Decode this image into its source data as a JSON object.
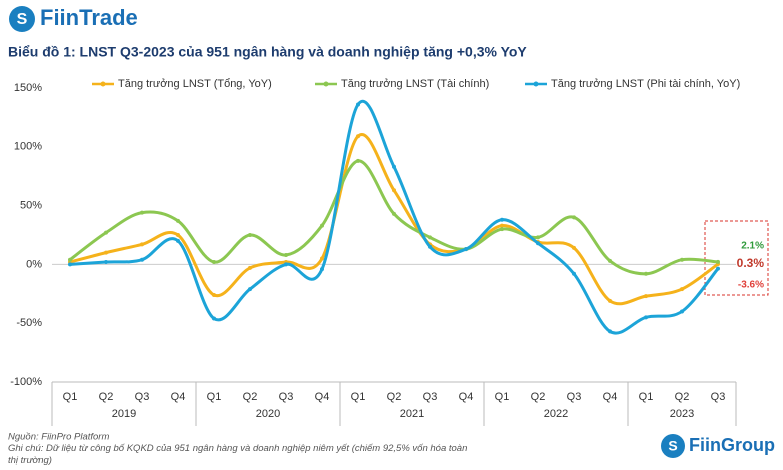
{
  "brand": "FiinTrade",
  "footer_brand": "FiinGroup",
  "source": "Nguồn: FiinPro Platform",
  "note": "Ghi chú: Dữ liệu từ công bố KQKD của 951 ngân hàng và doanh nghiệp niêm yết (chiếm 92,5% vốn hóa toàn thị trường)",
  "chart_data": {
    "type": "line",
    "title": "Biểu đồ 1: LNST Q3-2023 của 951 ngân hàng và doanh nghiệp tăng +0,3% YoY",
    "categories": [
      "Q1",
      "Q2",
      "Q3",
      "Q4",
      "Q1",
      "Q2",
      "Q3",
      "Q4",
      "Q1",
      "Q2",
      "Q3",
      "Q4",
      "Q1",
      "Q2",
      "Q3",
      "Q4",
      "Q1",
      "Q2",
      "Q3"
    ],
    "year_labels": [
      "2019",
      "2020",
      "2021",
      "2022",
      "2023"
    ],
    "ylim": [
      -100,
      150
    ],
    "yticks": [
      {
        "value": -100,
        "label": "-100%"
      },
      {
        "value": -50,
        "label": "-50%"
      },
      {
        "value": 0,
        "label": "0%"
      },
      {
        "value": 50,
        "label": "50%"
      },
      {
        "value": 100,
        "label": "100%"
      },
      {
        "value": 150,
        "label": "150%"
      }
    ],
    "grid": false,
    "series": [
      {
        "name": "Tăng trưởng LNST (Tổng, YoY)",
        "color": "#f5b21b",
        "label_color": "#c0392b",
        "values": [
          2,
          10,
          17,
          25,
          -26,
          -3,
          2,
          5,
          109,
          63,
          17,
          13,
          33,
          19,
          14,
          -31,
          -27,
          -21,
          0.3
        ],
        "value_labels": [
          null,
          null,
          null,
          null,
          null,
          null,
          null,
          null,
          null,
          null,
          null,
          null,
          null,
          null,
          null,
          null,
          null,
          null,
          "0.3%"
        ]
      },
      {
        "name": "Tăng trưởng LNST (Tài chính)",
        "color": "#8cc751",
        "label_color": "#2e9a3a",
        "values": [
          4,
          27,
          44,
          37,
          2,
          25,
          8,
          33,
          88,
          43,
          23,
          13,
          30,
          23,
          40,
          3,
          -8,
          4,
          2.1
        ],
        "value_labels": [
          null,
          null,
          null,
          null,
          null,
          null,
          null,
          null,
          null,
          null,
          null,
          null,
          null,
          null,
          null,
          null,
          null,
          null,
          "2.1%"
        ]
      },
      {
        "name": "Tăng trưởng LNST (Phi tài chính, YoY)",
        "color": "#1ca4d8",
        "label_color": "#e0403a",
        "values": [
          0,
          2,
          4,
          20,
          -46,
          -21,
          0,
          -4,
          136,
          83,
          15,
          13,
          38,
          18,
          -8,
          -57,
          -45,
          -40,
          -3.6
        ],
        "value_labels": [
          null,
          null,
          null,
          null,
          null,
          null,
          null,
          null,
          null,
          null,
          null,
          null,
          null,
          null,
          null,
          null,
          null,
          null,
          "-3.6%"
        ]
      }
    ]
  }
}
